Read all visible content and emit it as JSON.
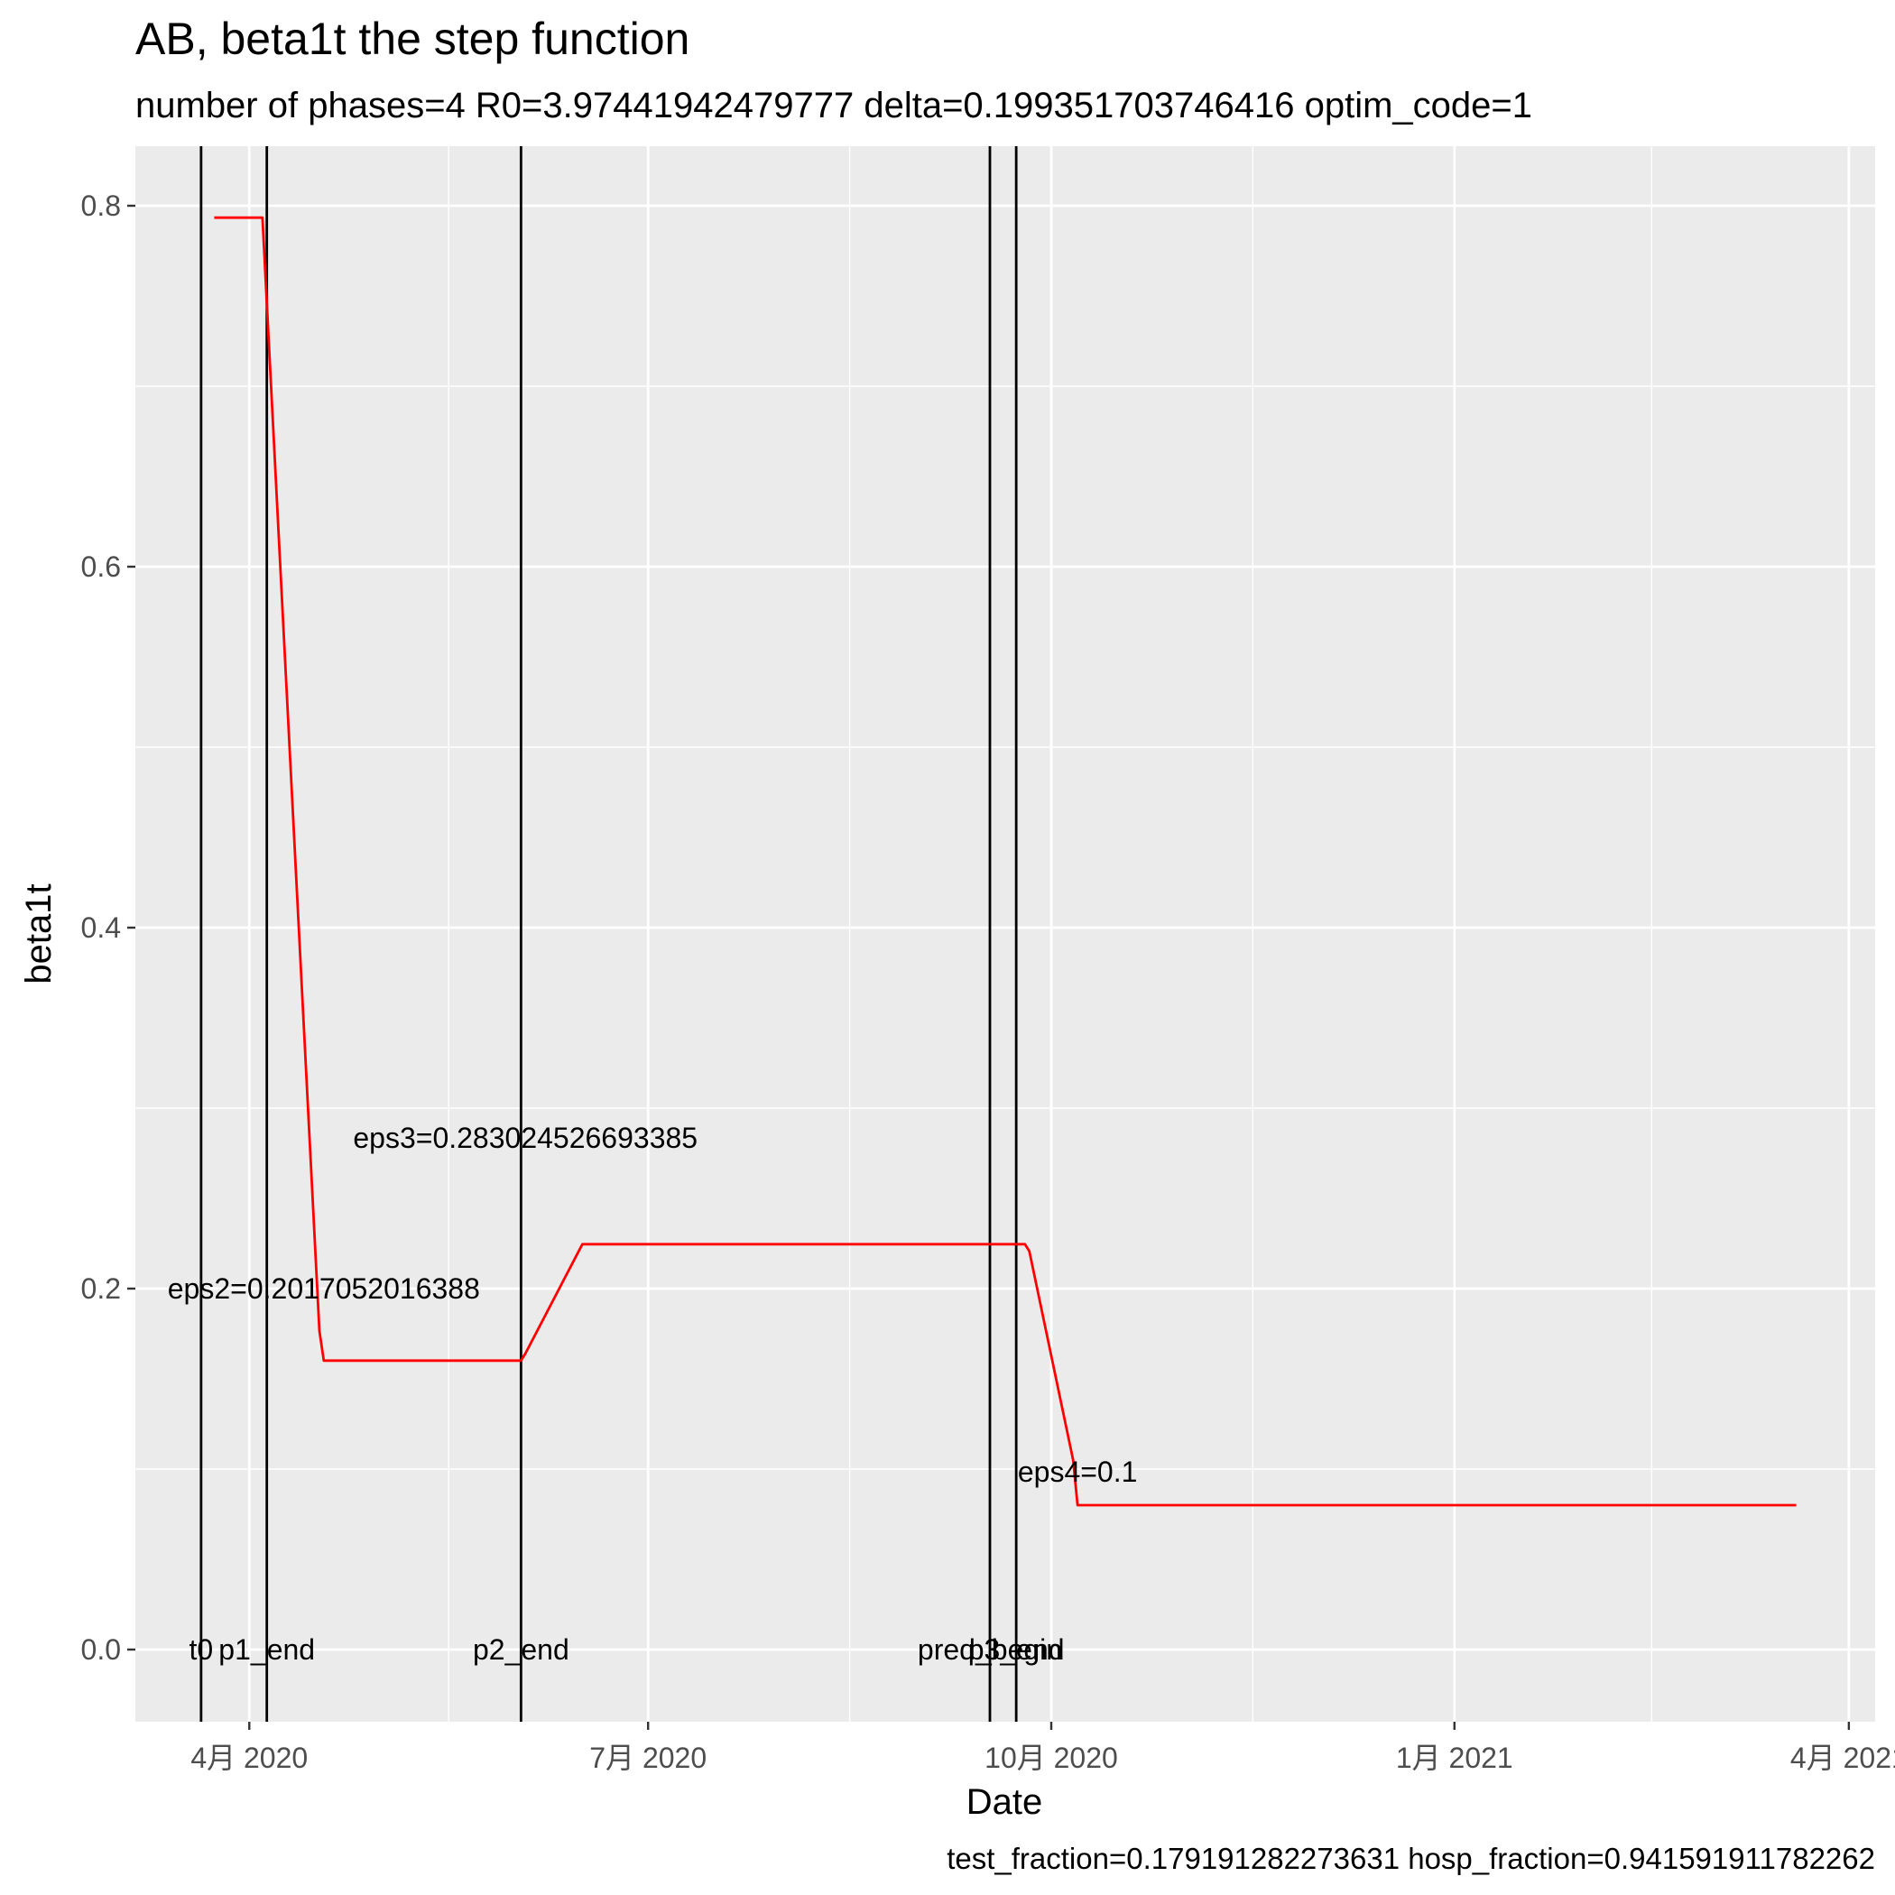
{
  "chart_data": {
    "type": "line",
    "title": "AB, beta1t the step function",
    "subtitle": "number of phases=4   R0=3.97441942479777   delta=0.199351703746416   optim_code=1",
    "caption": "test_fraction=0.179191282273631   hosp_fraction=0.941591911782262",
    "xlabel": "Date",
    "ylabel": "beta1t",
    "xlim": [
      "2020-03-06",
      "2021-04-07"
    ],
    "ylim": [
      -0.04,
      0.833
    ],
    "grid": true,
    "legend": "none",
    "x_ticks": [
      {
        "date": "2020-04-01",
        "label": "4月 2020"
      },
      {
        "date": "2020-07-01",
        "label": "7月 2020"
      },
      {
        "date": "2020-10-01",
        "label": "10月 2020"
      },
      {
        "date": "2021-01-01",
        "label": "1月 2021"
      },
      {
        "date": "2021-04-01",
        "label": "4月 2021"
      }
    ],
    "y_ticks": [
      {
        "value": 0.0,
        "label": "0.0"
      },
      {
        "value": 0.2,
        "label": "0.2"
      },
      {
        "value": 0.4,
        "label": "0.4"
      },
      {
        "value": 0.6,
        "label": "0.6"
      },
      {
        "value": 0.8,
        "label": "0.8"
      }
    ],
    "series": [
      {
        "color": "#ff0000",
        "points": [
          {
            "x": "2020-03-24",
            "y": 0.7934
          },
          {
            "x": "2020-04-04",
            "y": 0.7934
          },
          {
            "x": "2020-04-17",
            "y": 0.1765
          },
          {
            "x": "2020-04-18",
            "y": 0.1601
          },
          {
            "x": "2020-06-02",
            "y": 0.1601
          },
          {
            "x": "2020-06-03",
            "y": 0.164
          },
          {
            "x": "2020-06-16",
            "y": 0.2246
          },
          {
            "x": "2020-09-25",
            "y": 0.2246
          },
          {
            "x": "2020-09-26",
            "y": 0.2207
          },
          {
            "x": "2020-10-06",
            "y": 0.1049
          },
          {
            "x": "2020-10-07",
            "y": 0.08
          },
          {
            "x": "2021-03-20",
            "y": 0.08
          }
        ]
      }
    ],
    "vlines": [
      {
        "x": "2020-03-21",
        "label": "t0",
        "label_y": 0.0
      },
      {
        "x": "2020-04-05",
        "label": "p1_end",
        "label_y": 0.0
      },
      {
        "x": "2020-06-02",
        "label": "p2_end",
        "label_y": 0.0
      },
      {
        "x": "2020-09-17",
        "label": "pred_begin",
        "label_y": 0.0
      },
      {
        "x": "2020-09-23",
        "label": "p3_end",
        "label_y": 0.0
      }
    ],
    "annotations": [
      {
        "x": "2020-04-18",
        "y": 0.2,
        "text": "eps2=0.2017052016388"
      },
      {
        "x": "2020-06-03",
        "y": 0.2834,
        "text": "eps3=0.283024526693385"
      },
      {
        "x": "2020-10-07",
        "y": 0.0986,
        "text": "eps4=0.1"
      }
    ]
  }
}
